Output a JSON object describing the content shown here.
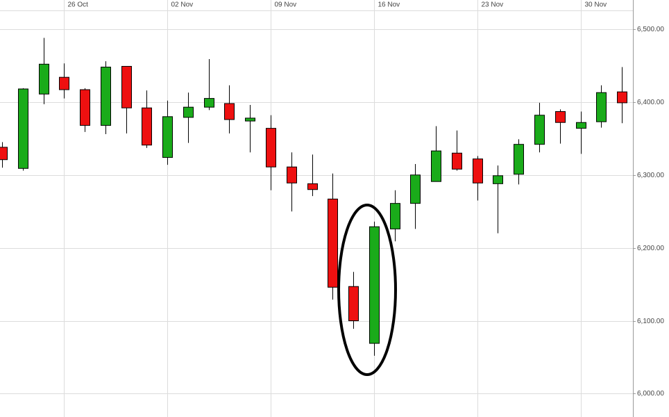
{
  "chart_data": {
    "type": "candlestick",
    "categories": [
      null,
      null,
      null,
      "26 Oct",
      null,
      null,
      null,
      null,
      "02 Nov",
      null,
      null,
      null,
      null,
      "09 Nov",
      null,
      null,
      null,
      null,
      "16 Nov",
      null,
      null,
      null,
      null,
      "23 Nov",
      null,
      null,
      null,
      null,
      "30 Nov",
      null,
      null
    ],
    "open": [
      6338,
      6309,
      6411,
      6434,
      6417,
      6368,
      6449,
      6392,
      6324,
      6379,
      6393,
      6398,
      6374,
      6364,
      6311,
      6288,
      6267,
      6147,
      6069,
      6226,
      6261,
      6291,
      6330,
      6322,
      6288,
      6301,
      6342,
      6387,
      6364,
      6373,
      6414
    ],
    "high": [
      6345,
      6419,
      6488,
      6453,
      6419,
      6456,
      6449,
      6416,
      6402,
      6413,
      6459,
      6423,
      6396,
      6382,
      6331,
      6328,
      6302,
      6167,
      6236,
      6279,
      6315,
      6367,
      6361,
      6326,
      6313,
      6349,
      6399,
      6390,
      6387,
      6423,
      6448
    ],
    "low": [
      6310,
      6306,
      6397,
      6405,
      6359,
      6356,
      6357,
      6337,
      6314,
      6344,
      6389,
      6357,
      6331,
      6279,
      6250,
      6271,
      6129,
      6089,
      6052,
      6209,
      6226,
      6291,
      6306,
      6265,
      6220,
      6287,
      6331,
      6343,
      6329,
      6365,
      6371
    ],
    "close": [
      6321,
      6418,
      6452,
      6417,
      6368,
      6448,
      6392,
      6341,
      6380,
      6393,
      6405,
      6376,
      6378,
      6311,
      6289,
      6280,
      6146,
      6100,
      6229,
      6261,
      6300,
      6333,
      6308,
      6289,
      6299,
      6342,
      6382,
      6372,
      6372,
      6413,
      6399
    ],
    "up_color": "#1aab1a",
    "down_color": "#ee1010",
    "ylim": [
      5968,
      6540
    ],
    "yticks": [
      {
        "value": 6000,
        "label": "6,000.00"
      },
      {
        "value": 6100,
        "label": "6,100.00"
      },
      {
        "value": 6200,
        "label": "6,200.00"
      },
      {
        "value": 6300,
        "label": "6,300.00"
      },
      {
        "value": 6400,
        "label": "6,400.00"
      },
      {
        "value": 6500,
        "label": "6,500.00"
      }
    ],
    "grid": true
  }
}
